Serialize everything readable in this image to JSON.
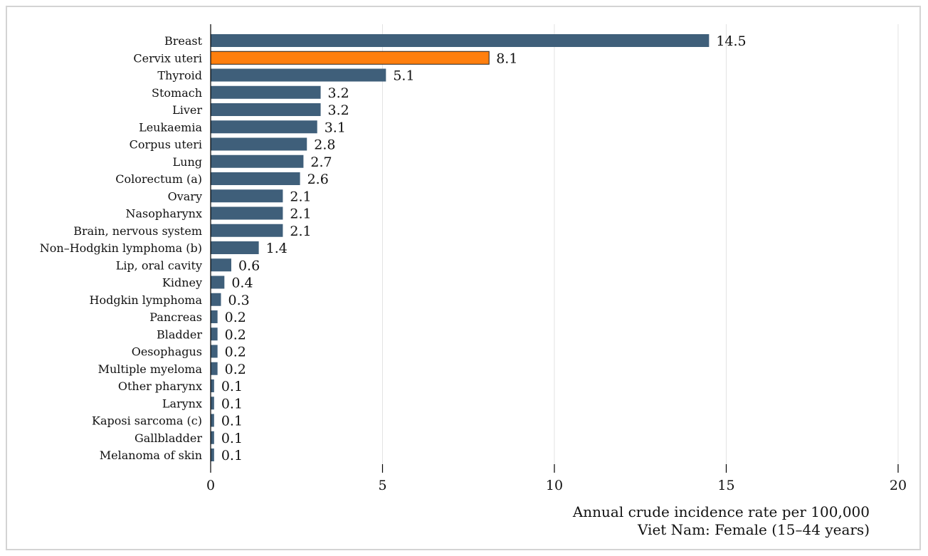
{
  "chart_data": {
    "type": "bar",
    "orientation": "horizontal",
    "categories": [
      "Breast",
      "Cervix uteri",
      "Thyroid",
      "Stomach",
      "Liver",
      "Leukaemia",
      "Corpus uteri",
      "Lung",
      "Colorectum (a)",
      "Ovary",
      "Nasopharynx",
      "Brain, nervous system",
      "Non–Hodgkin lymphoma (b)",
      "Lip, oral cavity",
      "Kidney",
      "Hodgkin lymphoma",
      "Pancreas",
      "Bladder",
      "Oesophagus",
      "Multiple myeloma",
      "Other pharynx",
      "Larynx",
      "Kaposi sarcoma (c)",
      "Gallbladder",
      "Melanoma of skin"
    ],
    "values": [
      14.5,
      8.1,
      5.1,
      3.2,
      3.2,
      3.1,
      2.8,
      2.7,
      2.6,
      2.1,
      2.1,
      2.1,
      1.4,
      0.6,
      0.4,
      0.3,
      0.2,
      0.2,
      0.2,
      0.2,
      0.1,
      0.1,
      0.1,
      0.1,
      0.1
    ],
    "value_labels": [
      "14.5",
      "8.1",
      "5.1",
      "3.2",
      "3.2",
      "3.1",
      "2.8",
      "2.7",
      "2.6",
      "2.1",
      "2.1",
      "2.1",
      "1.4",
      "0.6",
      "0.4",
      "0.3",
      "0.2",
      "0.2",
      "0.2",
      "0.2",
      "0.1",
      "0.1",
      "0.1",
      "0.1",
      "0.1"
    ],
    "highlight_category": "Cervix uteri",
    "colors": {
      "bar": "#3f5f7a",
      "highlight": "#ff7f0e",
      "highlight_stroke": "#222222"
    },
    "xlim": [
      0,
      20
    ],
    "xticks": [
      "0",
      "5",
      "10",
      "15",
      "20"
    ],
    "xtick_values": [
      0,
      5,
      10,
      15,
      20
    ],
    "xlabel": "Annual crude incidence rate per 100,000",
    "xlabel_sub": "Viet Nam: Female (15–44 years)",
    "grid": true
  }
}
